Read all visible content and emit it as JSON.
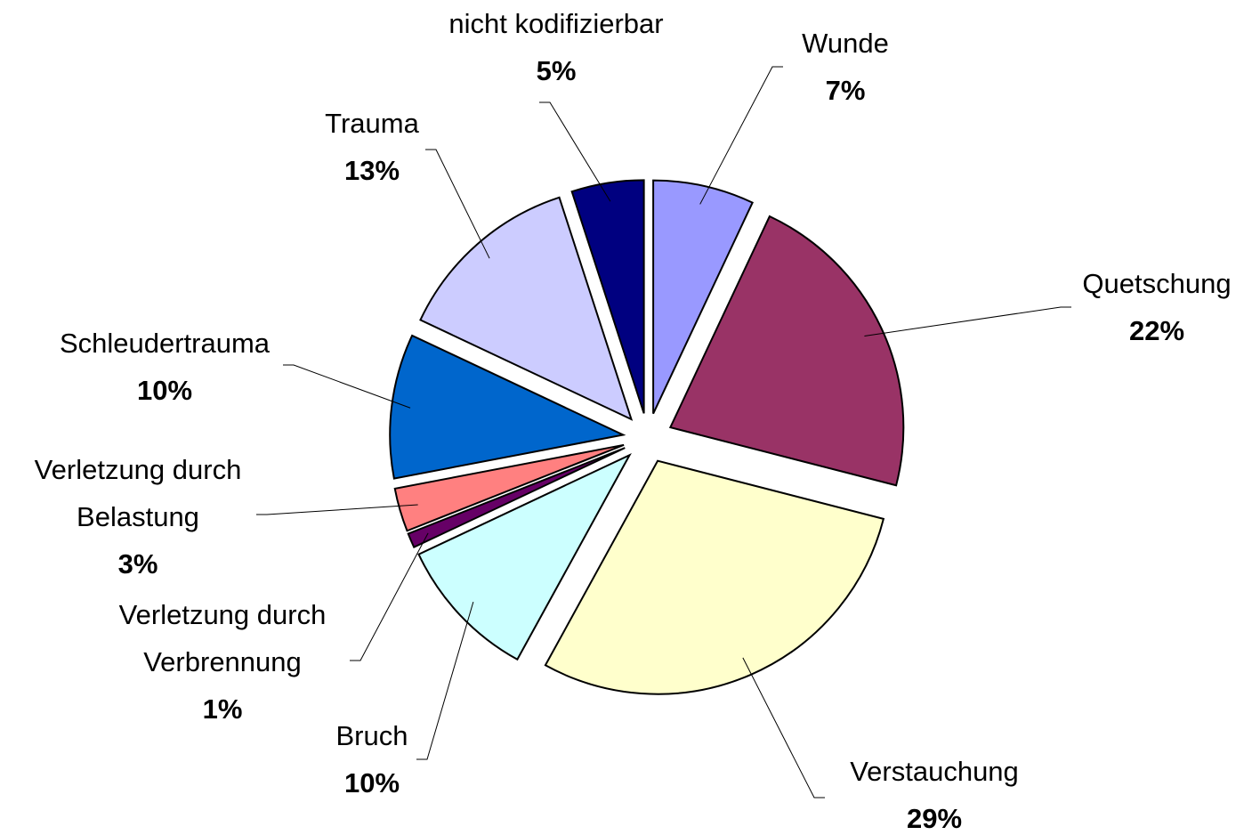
{
  "chart_data": {
    "type": "pie",
    "categories": [
      "Wunde",
      "Quetschung",
      "Verstauchung",
      "Bruch",
      "Verletzung durch Verbrennung",
      "Verletzung durch Belastung",
      "Schleudertrauma",
      "Trauma",
      "nicht kodifizierbar"
    ],
    "values": [
      7,
      22,
      29,
      10,
      1,
      3,
      10,
      13,
      5
    ],
    "value_labels": [
      "7%",
      "22%",
      "29%",
      "10%",
      "1%",
      "3%",
      "10%",
      "13%",
      "5%"
    ],
    "colors": [
      "#9999ff",
      "#993366",
      "#ffffcc",
      "#ccffff",
      "#660066",
      "#ff8080",
      "#0066cc",
      "#ccccff",
      "#000080"
    ]
  }
}
